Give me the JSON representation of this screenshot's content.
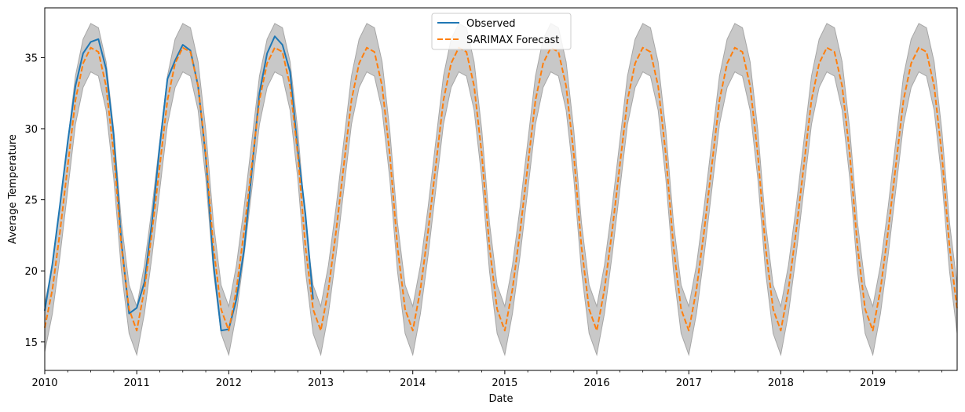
{
  "chart_data": {
    "type": "line",
    "title": "",
    "xlabel": "Date",
    "ylabel": "Average Temperature",
    "xlim": [
      "2010-01",
      "2019-12"
    ],
    "ylim": [
      13,
      38.5
    ],
    "x_ticks": [
      "2010",
      "2011",
      "2012",
      "2013",
      "2014",
      "2015",
      "2016",
      "2017",
      "2018",
      "2019"
    ],
    "y_ticks": [
      15,
      20,
      25,
      30,
      35
    ],
    "grid": false,
    "legend": {
      "position": "top-center",
      "entries": [
        "Observed",
        "SARIMAX Forecast"
      ]
    },
    "colors": {
      "observed": "#1f77b4",
      "forecast": "#ff7f0e",
      "confidence_band": "#c8c8c8",
      "confidence_edge": "#a6a6a6"
    },
    "observed": {
      "name": "Observed",
      "start": "2010-01",
      "values": [
        17.2,
        20.5,
        24.7,
        29.1,
        33.0,
        35.3,
        36.1,
        36.3,
        34.2,
        29.5,
        22.0,
        17.0,
        17.4,
        19.2,
        23.5,
        28.8,
        33.5,
        34.8,
        35.9,
        35.5,
        33.0,
        28.0,
        20.5,
        15.8,
        15.9,
        18.0,
        21.5,
        27.0,
        32.5,
        35.3,
        36.5,
        35.9,
        34.0,
        28.5,
        24.0,
        18.0
      ]
    },
    "forecast": {
      "name": "SARIMAX Forecast",
      "start": "2010-01",
      "values": [
        16.0,
        18.7,
        22.8,
        27.4,
        32.0,
        34.6,
        35.7,
        35.4,
        33.0,
        28.2,
        21.7,
        17.3,
        15.8,
        18.7,
        22.8,
        27.4,
        32.0,
        34.6,
        35.7,
        35.4,
        33.0,
        28.2,
        21.7,
        17.3,
        15.8,
        18.7,
        22.8,
        27.4,
        32.0,
        34.6,
        35.7,
        35.4,
        33.0,
        28.2,
        21.7,
        17.3,
        15.8,
        18.7,
        22.8,
        27.4,
        32.0,
        34.6,
        35.7,
        35.4,
        33.0,
        28.2,
        21.7,
        17.3,
        15.8,
        18.7,
        22.8,
        27.4,
        32.0,
        34.6,
        35.7,
        35.4,
        33.0,
        28.2,
        21.7,
        17.3,
        15.8,
        18.7,
        22.8,
        27.4,
        32.0,
        34.6,
        35.7,
        35.4,
        33.0,
        28.2,
        21.7,
        17.3,
        15.8,
        18.7,
        22.8,
        27.4,
        32.0,
        34.6,
        35.7,
        35.4,
        33.0,
        28.2,
        21.7,
        17.3,
        15.8,
        18.7,
        22.8,
        27.4,
        32.0,
        34.6,
        35.7,
        35.4,
        33.0,
        28.2,
        21.7,
        17.3,
        15.8,
        18.7,
        22.8,
        27.4,
        32.0,
        34.6,
        35.7,
        35.4,
        33.0,
        28.2,
        21.7,
        17.3,
        15.8,
        18.7,
        22.8,
        27.4,
        32.0,
        34.6,
        35.7,
        35.4,
        33.0,
        28.2,
        21.7,
        17.3
      ]
    },
    "confidence_interval": {
      "start": "2010-01",
      "lower": [
        14.3,
        17.0,
        21.1,
        25.7,
        30.3,
        32.9,
        34.0,
        33.7,
        31.3,
        26.5,
        20.0,
        15.6,
        14.1,
        17.0,
        21.1,
        25.7,
        30.3,
        32.9,
        34.0,
        33.7,
        31.3,
        26.5,
        20.0,
        15.6,
        14.1,
        17.0,
        21.1,
        25.7,
        30.3,
        32.9,
        34.0,
        33.7,
        31.3,
        26.5,
        20.0,
        15.6,
        14.1,
        17.0,
        21.1,
        25.7,
        30.3,
        32.9,
        34.0,
        33.7,
        31.3,
        26.5,
        20.0,
        15.6,
        14.1,
        17.0,
        21.1,
        25.7,
        30.3,
        32.9,
        34.0,
        33.7,
        31.3,
        26.5,
        20.0,
        15.6,
        14.1,
        17.0,
        21.1,
        25.7,
        30.3,
        32.9,
        34.0,
        33.7,
        31.3,
        26.5,
        20.0,
        15.6,
        14.1,
        17.0,
        21.1,
        25.7,
        30.3,
        32.9,
        34.0,
        33.7,
        31.3,
        26.5,
        20.0,
        15.6,
        14.1,
        17.0,
        21.1,
        25.7,
        30.3,
        32.9,
        34.0,
        33.7,
        31.3,
        26.5,
        20.0,
        15.6,
        14.1,
        17.0,
        21.1,
        25.7,
        30.3,
        32.9,
        34.0,
        33.7,
        31.3,
        26.5,
        20.0,
        15.6,
        14.1,
        17.0,
        21.1,
        25.7,
        30.3,
        32.9,
        34.0,
        33.7,
        31.3,
        26.5,
        20.0,
        15.6
      ],
      "upper": [
        17.7,
        20.4,
        24.5,
        29.1,
        33.7,
        36.3,
        37.4,
        37.1,
        34.7,
        29.9,
        23.4,
        19.0,
        17.5,
        20.4,
        24.5,
        29.1,
        33.7,
        36.3,
        37.4,
        37.1,
        34.7,
        29.9,
        23.4,
        19.0,
        17.5,
        20.4,
        24.5,
        29.1,
        33.7,
        36.3,
        37.4,
        37.1,
        34.7,
        29.9,
        23.4,
        19.0,
        17.5,
        20.4,
        24.5,
        29.1,
        33.7,
        36.3,
        37.4,
        37.1,
        34.7,
        29.9,
        23.4,
        19.0,
        17.5,
        20.4,
        24.5,
        29.1,
        33.7,
        36.3,
        37.4,
        37.1,
        34.7,
        29.9,
        23.4,
        19.0,
        17.5,
        20.4,
        24.5,
        29.1,
        33.7,
        36.3,
        37.4,
        37.1,
        34.7,
        29.9,
        23.4,
        19.0,
        17.5,
        20.4,
        24.5,
        29.1,
        33.7,
        36.3,
        37.4,
        37.1,
        34.7,
        29.9,
        23.4,
        19.0,
        17.5,
        20.4,
        24.5,
        29.1,
        33.7,
        36.3,
        37.4,
        37.1,
        34.7,
        29.9,
        23.4,
        19.0,
        17.5,
        20.4,
        24.5,
        29.1,
        33.7,
        36.3,
        37.4,
        37.1,
        34.7,
        29.9,
        23.4,
        19.0,
        17.5,
        20.4,
        24.5,
        29.1,
        33.7,
        36.3,
        37.4,
        37.1,
        34.7,
        29.9,
        23.4,
        19.0
      ]
    }
  }
}
